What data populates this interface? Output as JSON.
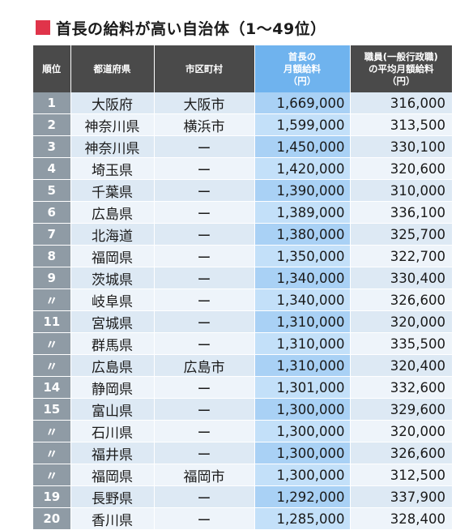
{
  "title": "首長の給料が高い自治体（1〜49位）",
  "headers": {
    "rank": "順位",
    "prefecture": "都道府県",
    "city": "市区町村",
    "salary": [
      "首長の",
      "月額給料",
      "（円）"
    ],
    "staff": [
      "職員(一般行政職)",
      "の平均月額給料",
      "（円）"
    ]
  },
  "rows": [
    {
      "rank": "1",
      "prefecture": "大阪府",
      "city": "大阪市",
      "salary": "1,669,000",
      "staff": "316,000"
    },
    {
      "rank": "2",
      "prefecture": "神奈川県",
      "city": "横浜市",
      "salary": "1,599,000",
      "staff": "313,500"
    },
    {
      "rank": "3",
      "prefecture": "神奈川県",
      "city": "ー",
      "salary": "1,450,000",
      "staff": "330,100"
    },
    {
      "rank": "4",
      "prefecture": "埼玉県",
      "city": "ー",
      "salary": "1,420,000",
      "staff": "320,600"
    },
    {
      "rank": "5",
      "prefecture": "千葉県",
      "city": "ー",
      "salary": "1,390,000",
      "staff": "310,000"
    },
    {
      "rank": "6",
      "prefecture": "広島県",
      "city": "ー",
      "salary": "1,389,000",
      "staff": "336,100"
    },
    {
      "rank": "7",
      "prefecture": "北海道",
      "city": "ー",
      "salary": "1,380,000",
      "staff": "325,700"
    },
    {
      "rank": "8",
      "prefecture": "福岡県",
      "city": "ー",
      "salary": "1,350,000",
      "staff": "322,700"
    },
    {
      "rank": "9",
      "prefecture": "茨城県",
      "city": "ー",
      "salary": "1,340,000",
      "staff": "330,400"
    },
    {
      "rank": "〃",
      "prefecture": "岐阜県",
      "city": "ー",
      "salary": "1,340,000",
      "staff": "326,600"
    },
    {
      "rank": "11",
      "prefecture": "宮城県",
      "city": "ー",
      "salary": "1,310,000",
      "staff": "320,000"
    },
    {
      "rank": "〃",
      "prefecture": "群馬県",
      "city": "ー",
      "salary": "1,310,000",
      "staff": "335,500"
    },
    {
      "rank": "〃",
      "prefecture": "広島県",
      "city": "広島市",
      "salary": "1,310,000",
      "staff": "320,400"
    },
    {
      "rank": "14",
      "prefecture": "静岡県",
      "city": "ー",
      "salary": "1,301,000",
      "staff": "332,600"
    },
    {
      "rank": "15",
      "prefecture": "富山県",
      "city": "ー",
      "salary": "1,300,000",
      "staff": "329,600"
    },
    {
      "rank": "〃",
      "prefecture": "石川県",
      "city": "ー",
      "salary": "1,300,000",
      "staff": "320,000"
    },
    {
      "rank": "〃",
      "prefecture": "福井県",
      "city": "ー",
      "salary": "1,300,000",
      "staff": "326,600"
    },
    {
      "rank": "〃",
      "prefecture": "福岡県",
      "city": "福岡市",
      "salary": "1,300,000",
      "staff": "312,500"
    },
    {
      "rank": "19",
      "prefecture": "長野県",
      "city": "ー",
      "salary": "1,292,000",
      "staff": "337,900"
    },
    {
      "rank": "20",
      "prefecture": "香川県",
      "city": "ー",
      "salary": "1,285,000",
      "staff": "328,400"
    }
  ],
  "colors": {
    "accent": "#e0344a",
    "header_dark": "#4a4a4a",
    "header_blue": "#6fb3ee",
    "rank_cell": "#8f9ba5"
  }
}
